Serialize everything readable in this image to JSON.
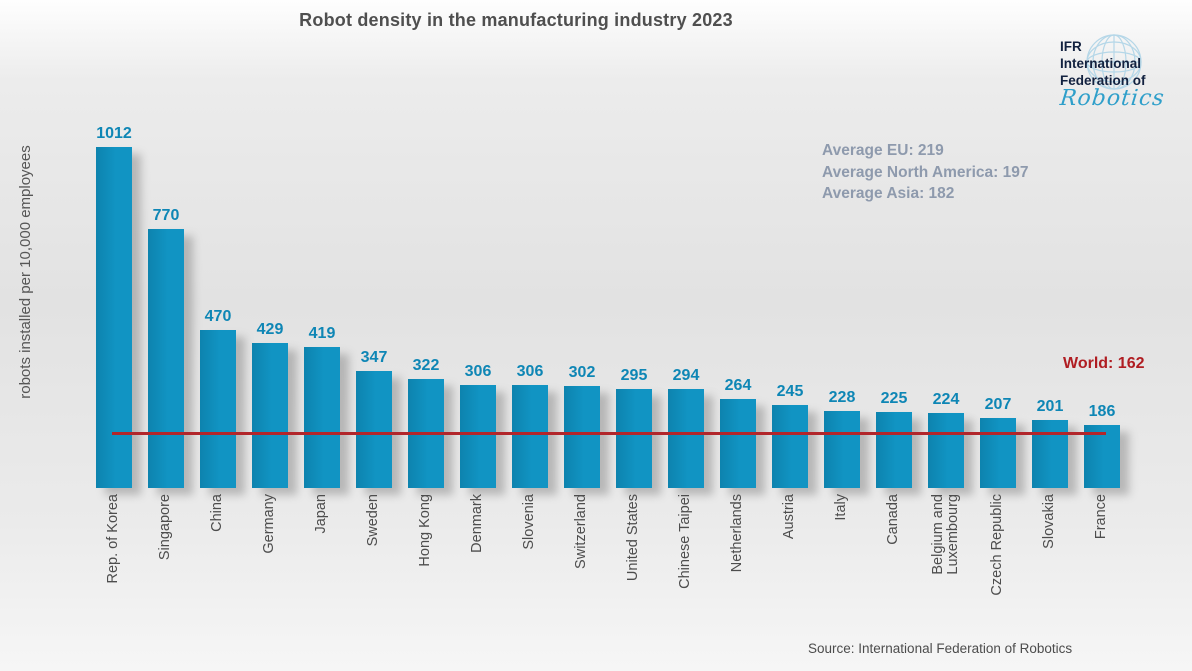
{
  "header": {
    "title": "Robot density in the manufacturing industry 2023"
  },
  "logo": {
    "line1": "IFR",
    "line2": "International",
    "line3": "Federation of",
    "script": "Robotics",
    "globe_icon": "globe-wireframe"
  },
  "source": {
    "text": "Source: International Federation of Robotics"
  },
  "colors": {
    "bar": "#1194c3",
    "value_label": "#0e86b5",
    "world_line": "#b2262b",
    "world_text": "#b01d22",
    "annotation_text": "#8e9aad",
    "title_text": "#4f4f4f",
    "axis_text": "#4d4d4d",
    "logo_navy": "#12213f",
    "logo_blue": "#2f9fca"
  },
  "chart_data": {
    "type": "bar",
    "title": "Robot density in the manufacturing industry 2023",
    "ylabel": "robots installed per 10,000 employees",
    "xlabel": "",
    "ylim": [
      0,
      1080
    ],
    "grid": false,
    "legend": "none",
    "categories": [
      "Rep. of Korea",
      "Singapore",
      "China",
      "Germany",
      "Japan",
      "Sweden",
      "Hong Kong",
      "Denmark",
      "Slovenia",
      "Switzerland",
      "United States",
      "Chinese Taipei",
      "Netherlands",
      "Austria",
      "Italy",
      "Canada",
      "Belgium and Luxembourg",
      "Czech Republic",
      "Slovakia",
      "France"
    ],
    "values": [
      1012,
      770,
      470,
      429,
      419,
      347,
      322,
      306,
      306,
      302,
      295,
      294,
      264,
      245,
      228,
      225,
      224,
      207,
      201,
      186
    ],
    "annotations": [
      "Average EU: 219",
      "Average North America: 197",
      "Average Asia: 182"
    ],
    "reference_line": {
      "label": "World: 162",
      "value": 162
    }
  }
}
